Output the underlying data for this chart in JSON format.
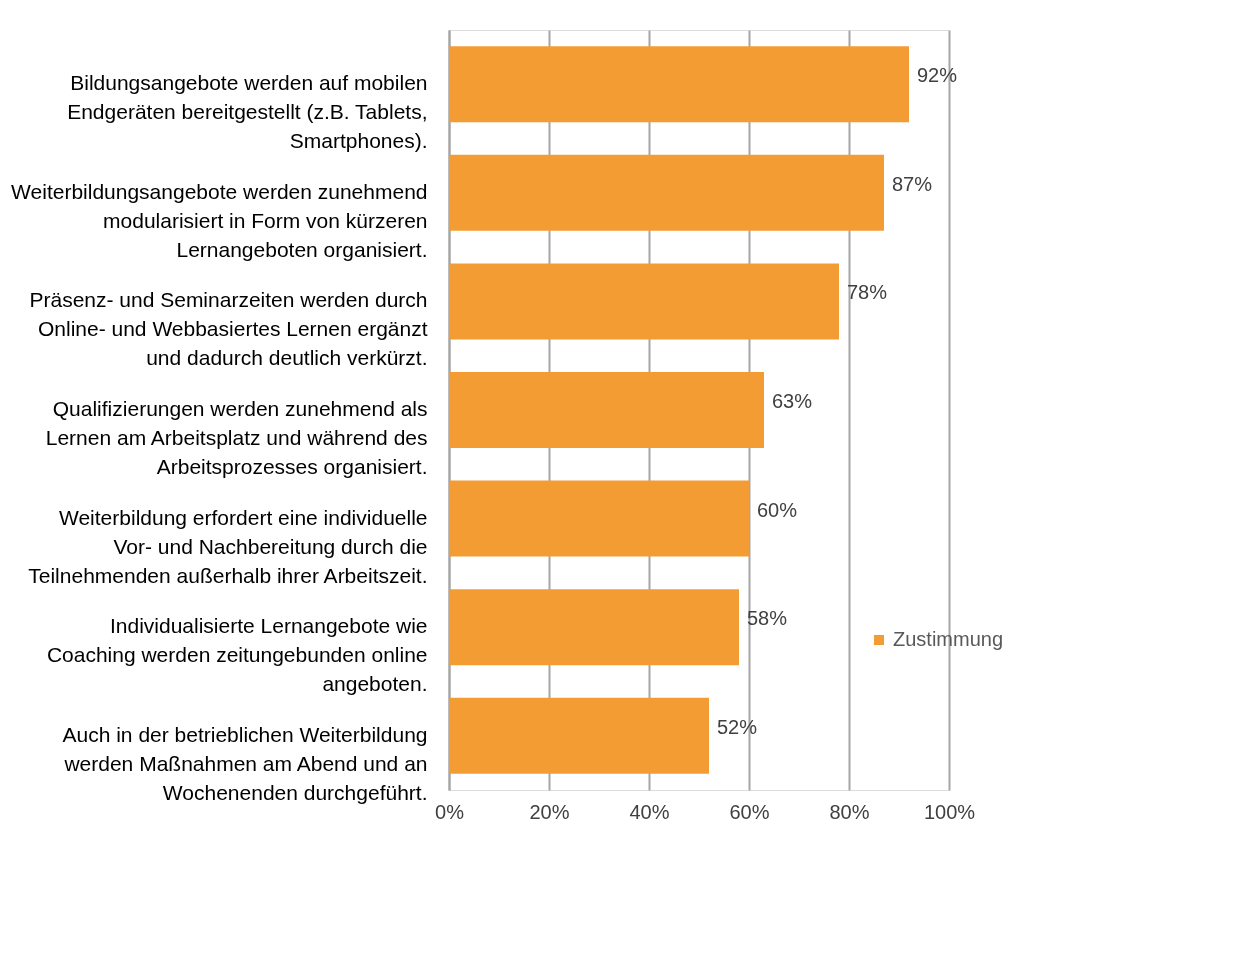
{
  "chart_data": {
    "type": "bar",
    "orientation": "horizontal",
    "categories": [
      "Bildungsangebote werden auf mobilen Endgeräten bereitgestellt (z.B. Tablets, Smartphones).",
      "Weiterbildungsangebote werden zunehmend modularisiert in Form von kürzeren Lernangeboten organisiert.",
      "Präsenz- und Seminarzeiten werden durch Online- und Webbasiertes Lernen ergänzt und dadurch deutlich verkürzt.",
      "Qualifizierungen werden zunehmend als Lernen am Arbeitsplatz und während des Arbeitsprozesses organisiert.",
      "Weiterbildung erfordert eine individuelle Vor- und Nachbereitung durch die Teilnehmenden außerhalb ihrer Arbeitszeit.",
      "Individualisierte Lernangebote wie Coaching werden zeitungebunden online angeboten.",
      "Auch in der betrieblichen Weiterbildung werden Maßnahmen am Abend und an Wochenenden durchgeführt."
    ],
    "series": [
      {
        "name": "Zustimmung",
        "color": "#f39c34",
        "values": [
          92,
          87,
          78,
          63,
          60,
          58,
          52
        ],
        "value_labels": [
          "92%",
          "87%",
          "78%",
          "63%",
          "60%",
          "58%",
          "52%"
        ]
      }
    ],
    "xlim": [
      0,
      100
    ],
    "xticks": [
      {
        "value": 0,
        "label": "0%"
      },
      {
        "value": 20,
        "label": "20%"
      },
      {
        "value": 40,
        "label": "40%"
      },
      {
        "value": 60,
        "label": "60%"
      },
      {
        "value": 80,
        "label": "80%"
      },
      {
        "value": 100,
        "label": "100%"
      }
    ],
    "grid": "x",
    "legend": "bottom right"
  }
}
